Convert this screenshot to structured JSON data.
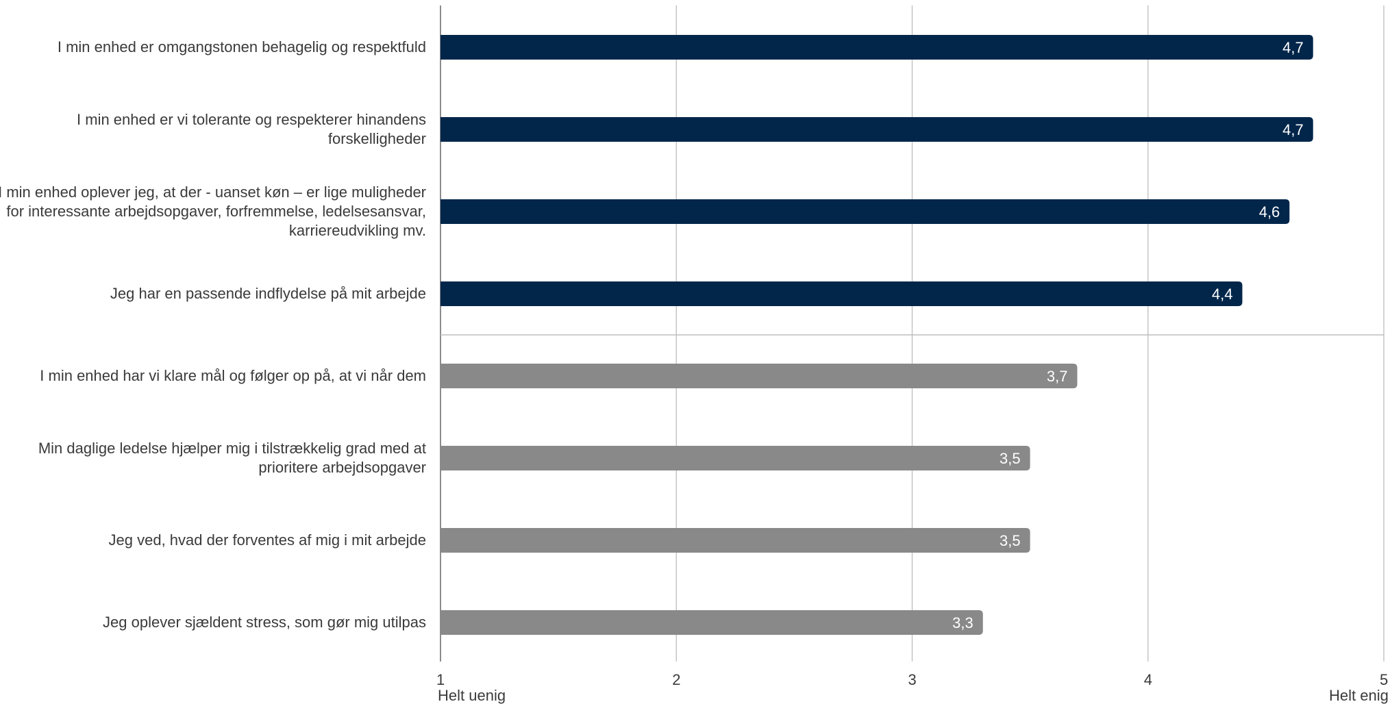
{
  "chart_data": {
    "type": "bar",
    "orientation": "horizontal",
    "categories": [
      "I min enhed er omgangstonen behagelig og respektfuld",
      "I min enhed er vi tolerante og respekterer hinandens forskelligheder",
      "I min enhed oplever jeg, at der - uanset køn – er lige muligheder for interessante arbejdsopgaver, forfremmelse, ledelsesansvar, karriereudvikling mv.",
      "Jeg har en passende indflydelse på mit arbejde",
      "I min enhed har vi klare mål og følger op på, at vi når dem",
      "Min daglige ledelse hjælper mig i tilstrækkelig grad med at prioritere arbejdsopgaver",
      "Jeg ved, hvad der forventes af mig i mit arbejde",
      "Jeg oplever sjældent stress, som gør mig utilpas"
    ],
    "values": [
      4.7,
      4.7,
      4.6,
      4.4,
      3.7,
      3.5,
      3.5,
      3.3
    ],
    "data_labels": [
      "4,7",
      "4,7",
      "4,6",
      "4,4",
      "3,7",
      "3,5",
      "3,5",
      "3,3"
    ],
    "bar_groups": [
      "top",
      "top",
      "top",
      "top",
      "bottom",
      "bottom",
      "bottom",
      "bottom"
    ],
    "colors": {
      "top": "#02264a",
      "bottom": "#898989",
      "grid": "#bdbdbd",
      "text": "#3a3a3a"
    },
    "xlim": [
      1,
      5
    ],
    "x_ticks": [
      1,
      2,
      3,
      4,
      5
    ],
    "x_tick_labels": [
      "1",
      "2",
      "3",
      "4",
      "5"
    ],
    "x_tick_sublabels": {
      "min": "Helt uenig",
      "max": "Helt enig"
    },
    "grid": true,
    "title": "",
    "xlabel": "",
    "ylabel": ""
  }
}
